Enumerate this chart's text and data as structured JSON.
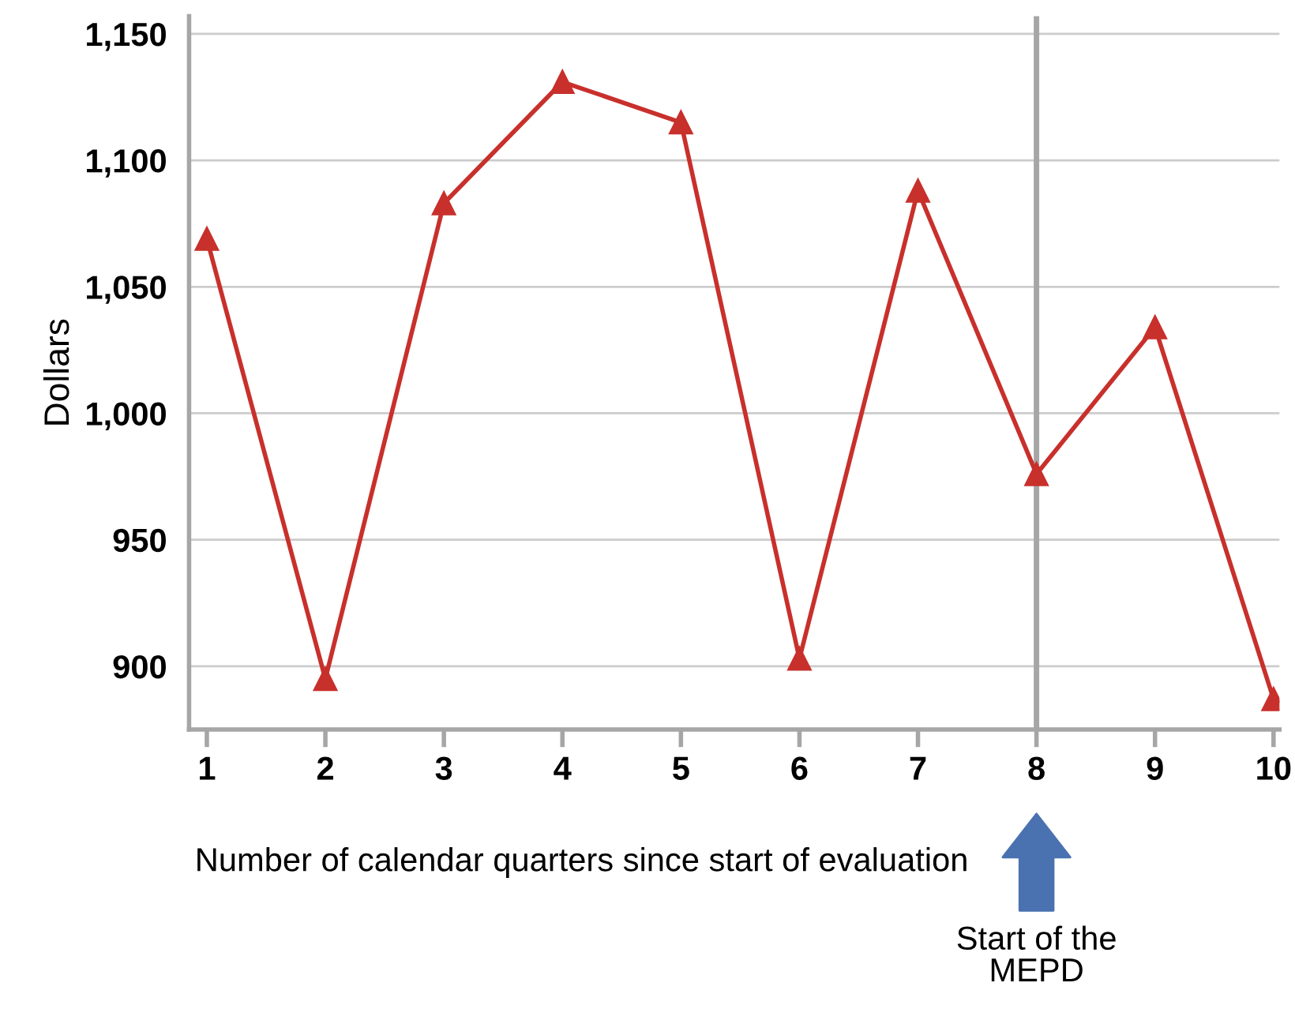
{
  "chart_data": {
    "type": "line",
    "xlabel": "Number of calendar quarters since start of evaluation",
    "ylabel": "Dollars",
    "x": [
      1,
      2,
      3,
      4,
      5,
      6,
      7,
      8,
      9,
      10
    ],
    "series": [
      {
        "color": "#c8302c",
        "values": [
          1069,
          895,
          1083,
          1131,
          1115,
          903,
          1088,
          976,
          1034,
          887
        ]
      }
    ],
    "marker": "triangle",
    "line_style": "solid",
    "xlim": [
      0.85,
      10.05
    ],
    "xticks": [
      1,
      2,
      3,
      4,
      5,
      6,
      7,
      8,
      9,
      10
    ],
    "ylim": [
      875,
      1157
    ],
    "yticks": [
      {
        "value": 900,
        "label": "900"
      },
      {
        "value": 950,
        "label": "950"
      },
      {
        "value": 1000,
        "label": "1,000"
      },
      {
        "value": 1050,
        "label": "1,050"
      },
      {
        "value": 1100,
        "label": "1,100"
      },
      {
        "value": 1150,
        "label": "1,150"
      }
    ],
    "grid": "y",
    "legend": false,
    "ref_lines": [
      {
        "axis": "x",
        "value": 8,
        "color": "#a6a6a6"
      }
    ],
    "annotations": [
      "Start of the\nMEPD"
    ]
  }
}
